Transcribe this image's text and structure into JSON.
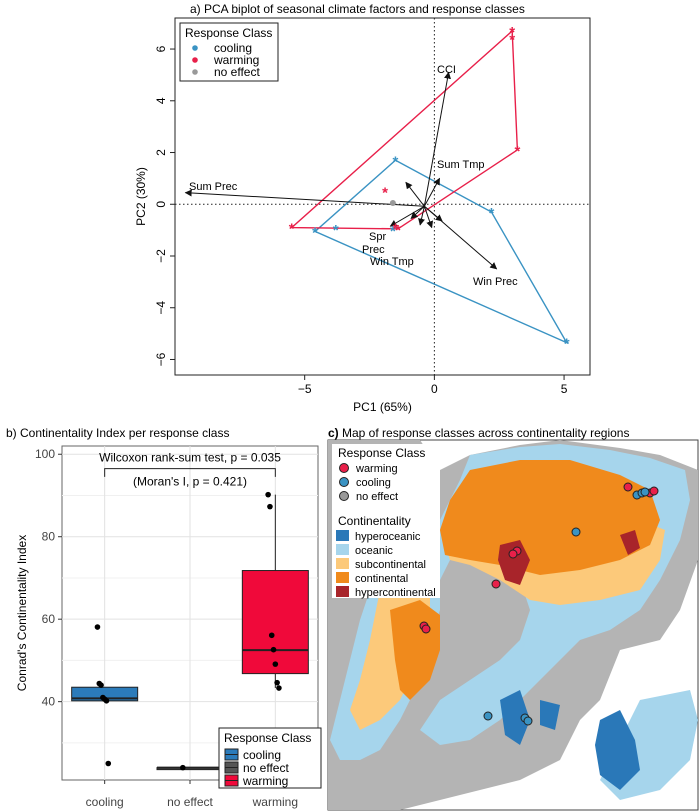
{
  "panels": {
    "a": {
      "title": "a)  PCA biplot of seasonal climate factors and response classes"
    },
    "b": {
      "title": "b) Continentality Index per response class"
    },
    "c": {
      "label": "c)",
      "title": " Map of response classes across continentality regions"
    }
  },
  "colors": {
    "cooling": "#3a93c3",
    "warming": "#e8204a",
    "no_effect": "#999999",
    "box_cooling": "#2b7bba",
    "box_no_effect": "#555555",
    "box_warming": "#f0093a",
    "hyperoceanic": "#2a78b8",
    "oceanic": "#a6d5ec",
    "subcontinental": "#fcc97a",
    "continental": "#f08a1c",
    "hypercontinental": "#a8242a",
    "land_gray": "#b4b4b4"
  },
  "chart_data": [
    {
      "id": "pca",
      "type": "scatter",
      "xlabel": "PC1 (65%)",
      "ylabel": "PC2 (30%)",
      "xlim": [
        -10,
        6
      ],
      "ylim": [
        -6.6,
        7.2
      ],
      "xticks": [
        -5,
        0,
        5
      ],
      "yticks": [
        -6,
        -4,
        -2,
        0,
        2,
        4,
        6
      ],
      "grid": false,
      "legend": {
        "title": "Response Class",
        "position": "top-left",
        "entries": [
          "cooling",
          "warming",
          "no effect"
        ]
      },
      "series": [
        {
          "name": "cooling",
          "marker": "asterisk",
          "points": [
            [
              -1.5,
              1.7
            ],
            [
              -3.8,
              -0.95
            ],
            [
              -4.6,
              -1.05
            ],
            [
              -1.6,
              -1.0
            ],
            [
              2.2,
              -0.3
            ],
            [
              5.1,
              -5.35
            ]
          ],
          "hull": [
            [
              -1.5,
              1.7
            ],
            [
              2.2,
              -0.3
            ],
            [
              5.1,
              -5.35
            ],
            [
              -4.6,
              -1.05
            ]
          ]
        },
        {
          "name": "warming",
          "marker": "asterisk",
          "points": [
            [
              3.0,
              6.7
            ],
            [
              3.0,
              6.4
            ],
            [
              3.2,
              2.1
            ],
            [
              -5.5,
              -0.9
            ],
            [
              -1.9,
              0.5
            ],
            [
              -1.5,
              -0.9
            ],
            [
              -1.4,
              -0.95
            ]
          ],
          "hull": [
            [
              3.0,
              6.7
            ],
            [
              3.2,
              2.1
            ],
            [
              -1.4,
              -0.95
            ],
            [
              -5.5,
              -0.9
            ]
          ]
        },
        {
          "name": "no effect",
          "marker": "dot",
          "points": [
            [
              -1.6,
              0.05
            ]
          ]
        }
      ],
      "loadings": [
        {
          "label": "CCI",
          "x": 0.55,
          "y": 5.1
        },
        {
          "label": "Sum Tmp",
          "x": 0.2,
          "y": 1.0
        },
        {
          "label": "Sum Prec",
          "x": -9.6,
          "y": 0.45
        },
        {
          "label": "Win Prec",
          "x": 2.4,
          "y": -2.5
        },
        {
          "label": "Spr Prec",
          "x": -1.7,
          "y": -0.85
        },
        {
          "label": "Win Tmp",
          "x": -0.55,
          "y": -0.8
        },
        {
          "label": "",
          "x": -1.1,
          "y": 0.85
        },
        {
          "label": "",
          "x": -0.9,
          "y": -0.55
        },
        {
          "label": "",
          "x": -0.1,
          "y": -0.9
        },
        {
          "label": "",
          "x": 0.3,
          "y": -0.65
        }
      ],
      "loading_labels": {
        "spr": "Spr",
        "prec": "Prec"
      }
    },
    {
      "id": "boxplot",
      "type": "box",
      "categories": [
        "cooling",
        "no effect",
        "warming"
      ],
      "ylabel": "Conrad's Continentality Index",
      "ylim": [
        21,
        102
      ],
      "yticks": [
        40,
        60,
        80,
        100
      ],
      "grid": true,
      "boxes": [
        {
          "name": "cooling",
          "q1": 40.2,
          "median": 40.8,
          "q3": 43.5,
          "low": 40.2,
          "high": 43.5,
          "points": [
            58.1,
            44.4,
            44.0,
            41.0,
            40.6,
            40.2,
            25.0
          ]
        },
        {
          "name": "no effect",
          "q1": 24.0,
          "median": 24.0,
          "q3": 24.0,
          "low": 24.0,
          "high": 24.0,
          "points": [
            24.0
          ]
        },
        {
          "name": "warming",
          "q1": 46.8,
          "median": 52.5,
          "q3": 71.8,
          "low": 43.3,
          "high": 90.2,
          "points": [
            90.2,
            87.3,
            56.1,
            52.6,
            49.1,
            44.6,
            43.3
          ]
        }
      ],
      "annotation": {
        "test": "Wilcoxon rank-sum test, p = 0.035",
        "morans": "(Moran's I, p = 0.421)"
      },
      "legend": {
        "title": "Response Class",
        "position": "bottom-right",
        "entries": [
          "cooling",
          "no effect",
          "warming"
        ]
      }
    },
    {
      "id": "map",
      "type": "map",
      "legend_response": {
        "title": "Response Class",
        "entries": [
          "warming",
          "cooling",
          "no effect"
        ]
      },
      "legend_continentality": {
        "title": "Continentality",
        "entries": [
          "hyperoceanic",
          "oceanic",
          "subcontinental",
          "continental",
          "hypercontinental"
        ]
      }
    }
  ]
}
